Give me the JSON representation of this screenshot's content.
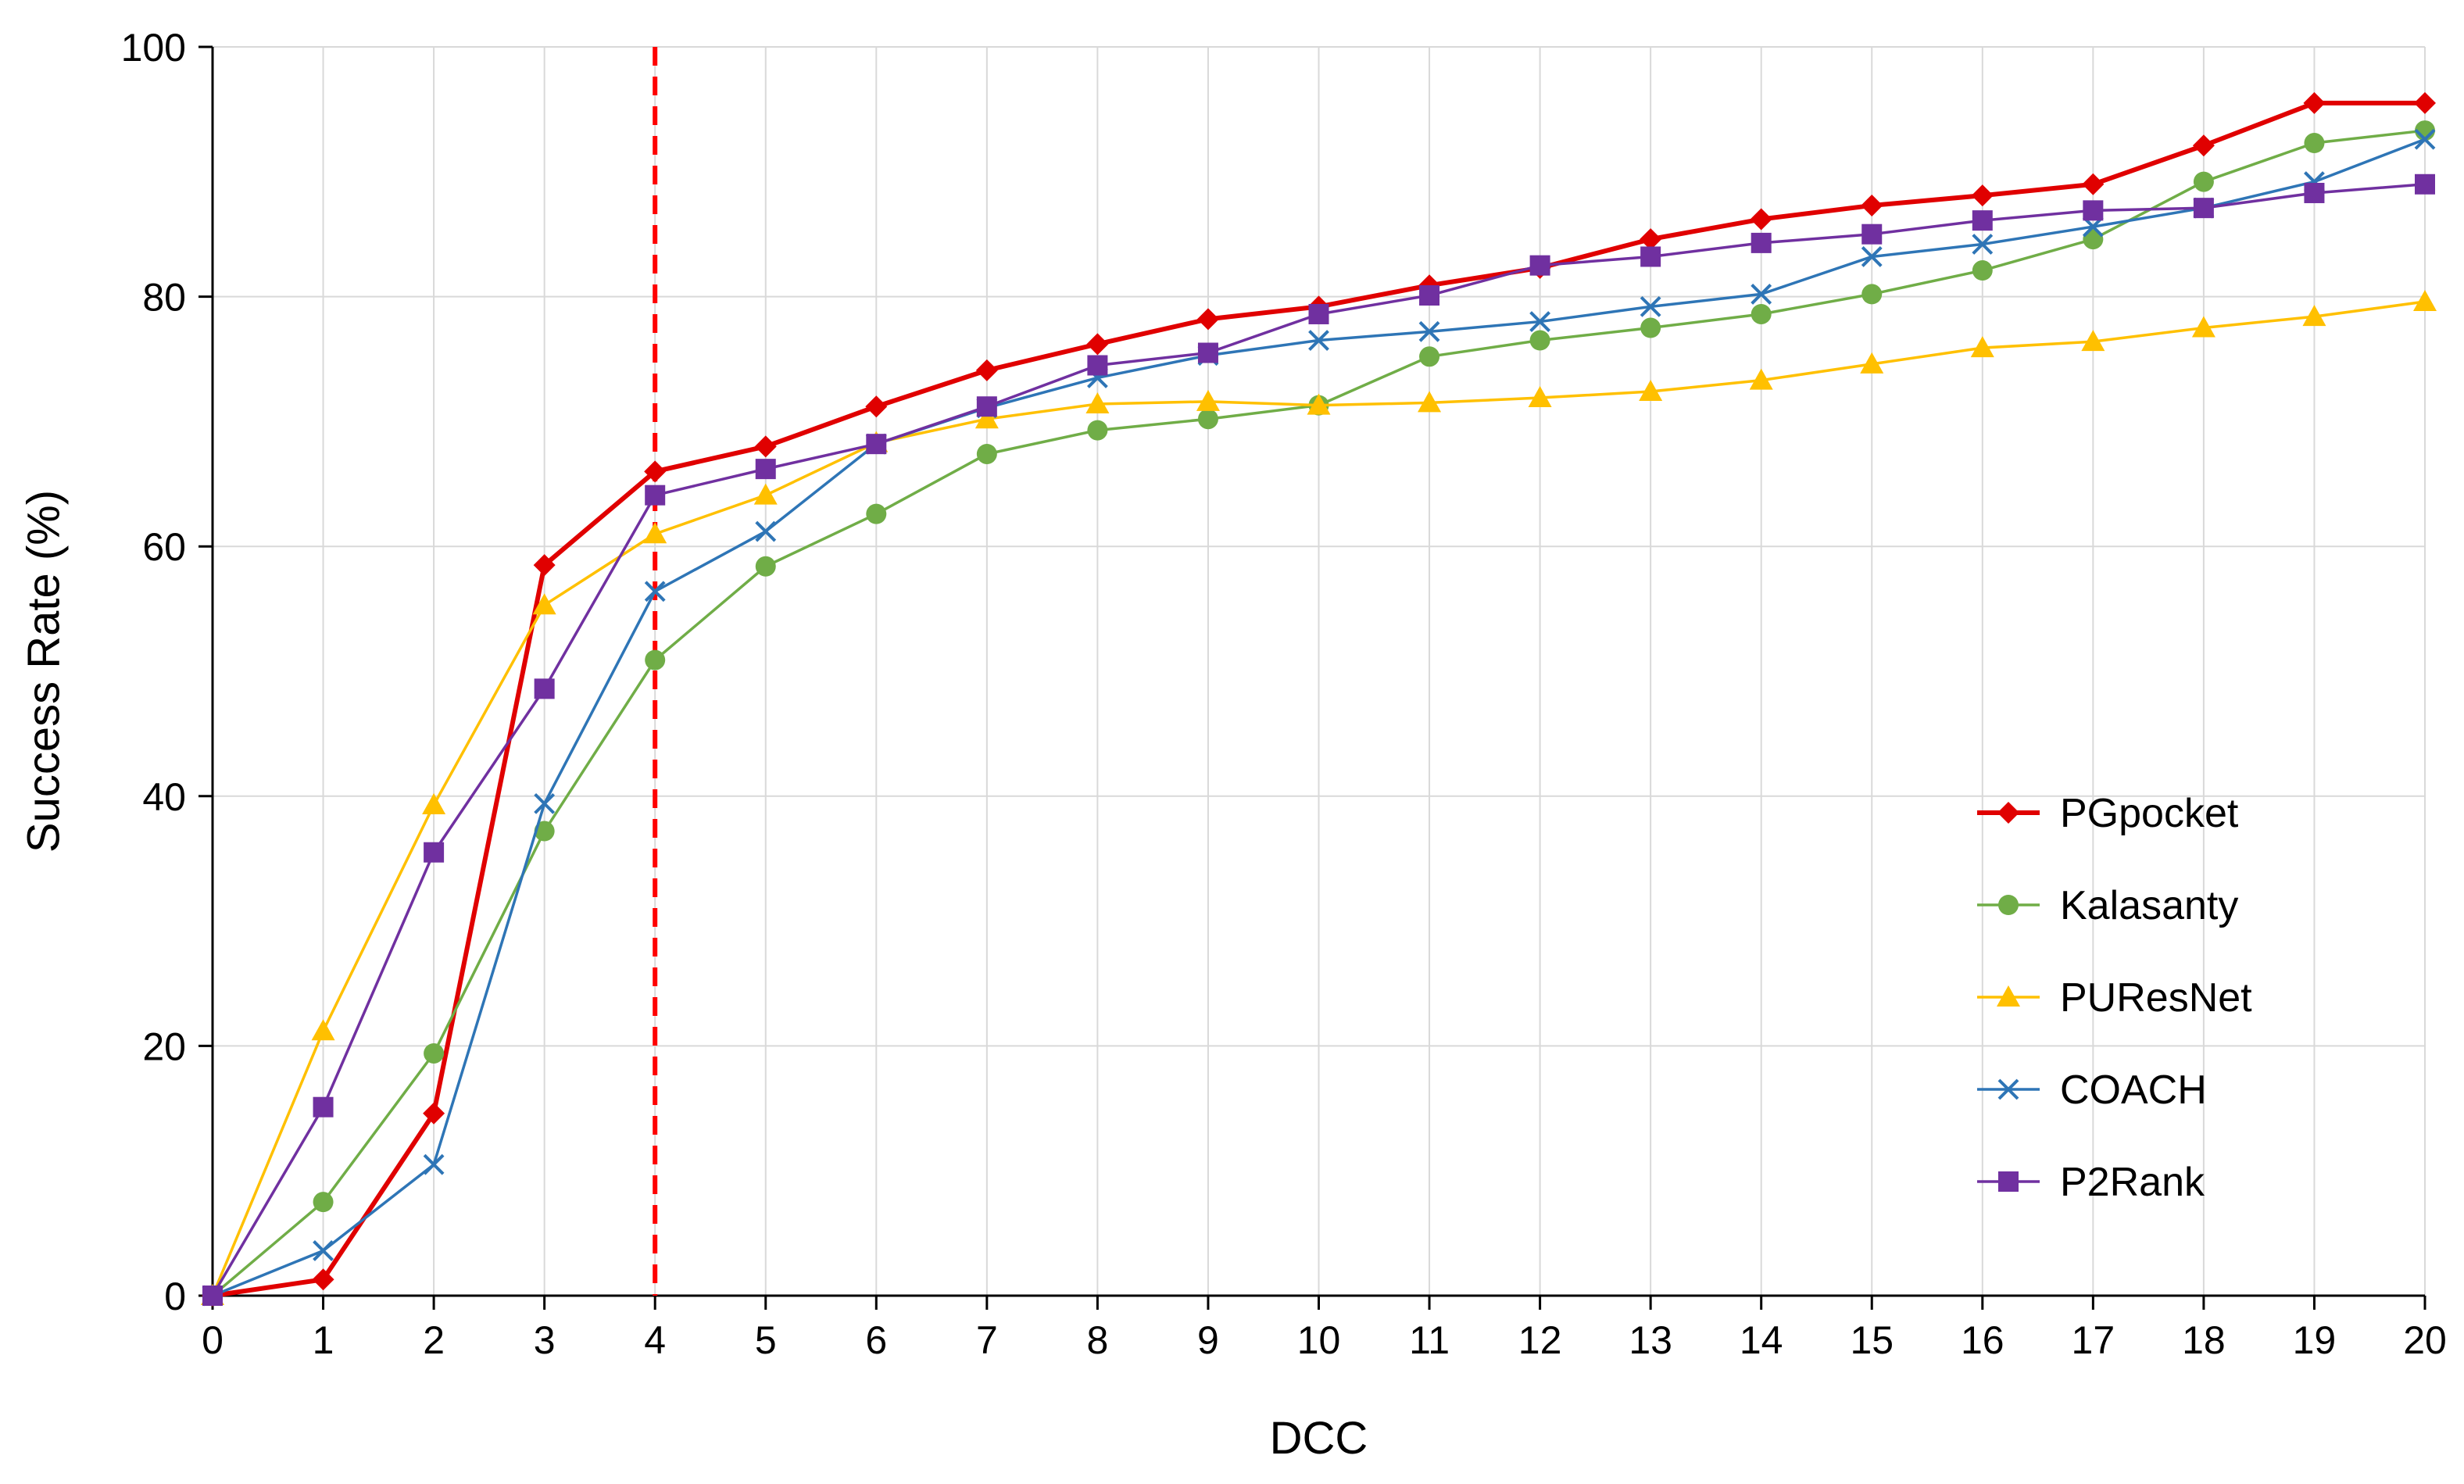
{
  "chart_data": {
    "type": "line",
    "title": "",
    "xlabel": "DCC",
    "ylabel": "Success Rate (%)",
    "xlim": [
      0,
      20
    ],
    "ylim": [
      0,
      100
    ],
    "x_ticks": [
      0,
      1,
      2,
      3,
      4,
      5,
      6,
      7,
      8,
      9,
      10,
      11,
      12,
      13,
      14,
      15,
      16,
      17,
      18,
      19,
      20
    ],
    "y_ticks": [
      0,
      20,
      40,
      60,
      80,
      100
    ],
    "grid": true,
    "legend_position": "right",
    "reference_line": {
      "x": 4,
      "style": "dashed",
      "color": "#FF0000"
    },
    "x": [
      0,
      1,
      2,
      3,
      4,
      5,
      6,
      7,
      8,
      9,
      10,
      11,
      12,
      13,
      14,
      15,
      16,
      17,
      18,
      19,
      20
    ],
    "series": [
      {
        "name": "PGpocket",
        "color": "#E00000",
        "marker": "diamond",
        "values": [
          0,
          1.3,
          14.6,
          58.5,
          66.0,
          68.0,
          71.2,
          74.1,
          76.2,
          78.2,
          79.2,
          80.9,
          82.3,
          84.6,
          86.2,
          87.3,
          88.1,
          89.0,
          92.1,
          95.5,
          95.5
        ]
      },
      {
        "name": "Kalasanty",
        "color": "#70AD47",
        "marker": "circle",
        "values": [
          0,
          7.5,
          19.4,
          37.2,
          50.9,
          58.4,
          62.6,
          67.4,
          69.3,
          70.2,
          71.3,
          75.2,
          76.5,
          77.5,
          78.6,
          80.2,
          82.1,
          84.6,
          89.2,
          92.3,
          93.3
        ]
      },
      {
        "name": "PUResNet",
        "color": "#FFC000",
        "marker": "triangle",
        "values": [
          0,
          21.2,
          39.3,
          55.3,
          61.0,
          64.1,
          68.3,
          70.2,
          71.4,
          71.6,
          71.3,
          71.5,
          71.9,
          72.4,
          73.3,
          74.6,
          75.9,
          76.4,
          77.5,
          78.4,
          79.6
        ]
      },
      {
        "name": "COACH",
        "color": "#2E75B6",
        "marker": "x",
        "values": [
          0,
          3.6,
          10.5,
          39.4,
          56.4,
          61.2,
          68.2,
          71.1,
          73.5,
          75.3,
          76.5,
          77.2,
          78.0,
          79.2,
          80.2,
          83.2,
          84.2,
          85.6,
          87.1,
          89.2,
          92.6
        ]
      },
      {
        "name": "P2Rank",
        "color": "#7030A0",
        "marker": "square",
        "values": [
          0,
          15.1,
          35.5,
          48.6,
          64.1,
          66.2,
          68.2,
          71.2,
          74.5,
          75.5,
          78.6,
          80.1,
          82.5,
          83.2,
          84.3,
          85.0,
          86.1,
          86.9,
          87.1,
          88.3,
          89.0
        ]
      }
    ]
  }
}
